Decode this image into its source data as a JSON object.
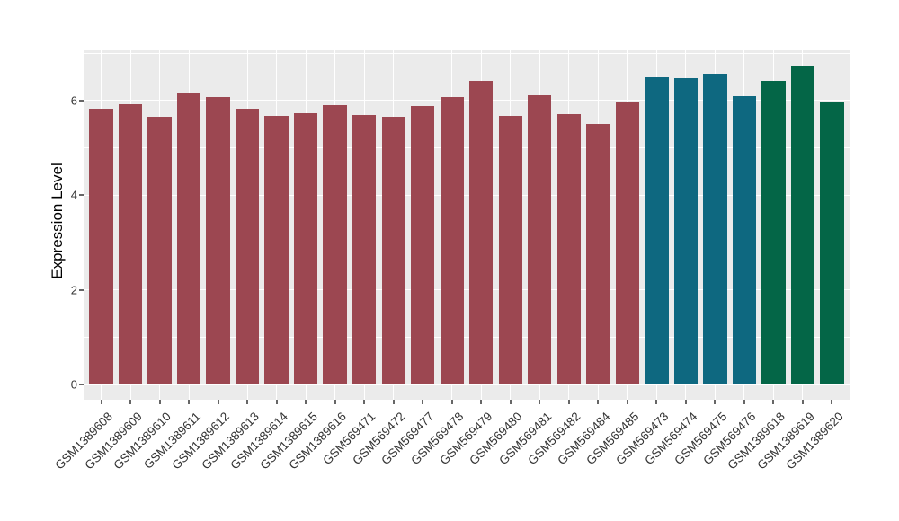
{
  "chart_data": {
    "type": "bar",
    "title": "",
    "xlabel": "",
    "y_axis": {
      "label": "Expression Level",
      "ticks": [
        0,
        2,
        4,
        6
      ],
      "minor_ticks": [
        1,
        3,
        5,
        7
      ],
      "range": [
        -0.32,
        7.06
      ]
    },
    "categories": [
      "GSM1389608",
      "GSM1389609",
      "GSM1389610",
      "GSM1389611",
      "GSM1389612",
      "GSM1389613",
      "GSM1389614",
      "GSM1389615",
      "GSM1389616",
      "GSM569471",
      "GSM569472",
      "GSM569477",
      "GSM569478",
      "GSM569479",
      "GSM569480",
      "GSM569481",
      "GSM569482",
      "GSM569484",
      "GSM569485",
      "GSM569473",
      "GSM569474",
      "GSM569475",
      "GSM569476",
      "GSM1389618",
      "GSM1389619",
      "GSM1389620"
    ],
    "values": [
      5.83,
      5.93,
      5.65,
      6.14,
      6.08,
      5.82,
      5.67,
      5.73,
      5.9,
      5.69,
      5.65,
      5.88,
      6.07,
      6.41,
      5.67,
      6.11,
      5.72,
      5.5,
      5.97,
      6.49,
      6.47,
      6.56,
      6.09,
      6.42,
      6.72,
      5.96
    ],
    "groups": [
      "maroon",
      "maroon",
      "maroon",
      "maroon",
      "maroon",
      "maroon",
      "maroon",
      "maroon",
      "maroon",
      "maroon",
      "maroon",
      "maroon",
      "maroon",
      "maroon",
      "maroon",
      "maroon",
      "maroon",
      "maroon",
      "maroon",
      "teal",
      "teal",
      "teal",
      "teal",
      "green",
      "green",
      "green"
    ],
    "palette": {
      "maroon": "#9C4751",
      "teal": "#0E6880",
      "green": "#046647"
    },
    "panel_background": "#EBEBEB",
    "gridline_color": "#FFFFFF",
    "tick_color": "#666666",
    "axis_text_color": "#333333",
    "legend_position": "none",
    "grid": "on"
  }
}
